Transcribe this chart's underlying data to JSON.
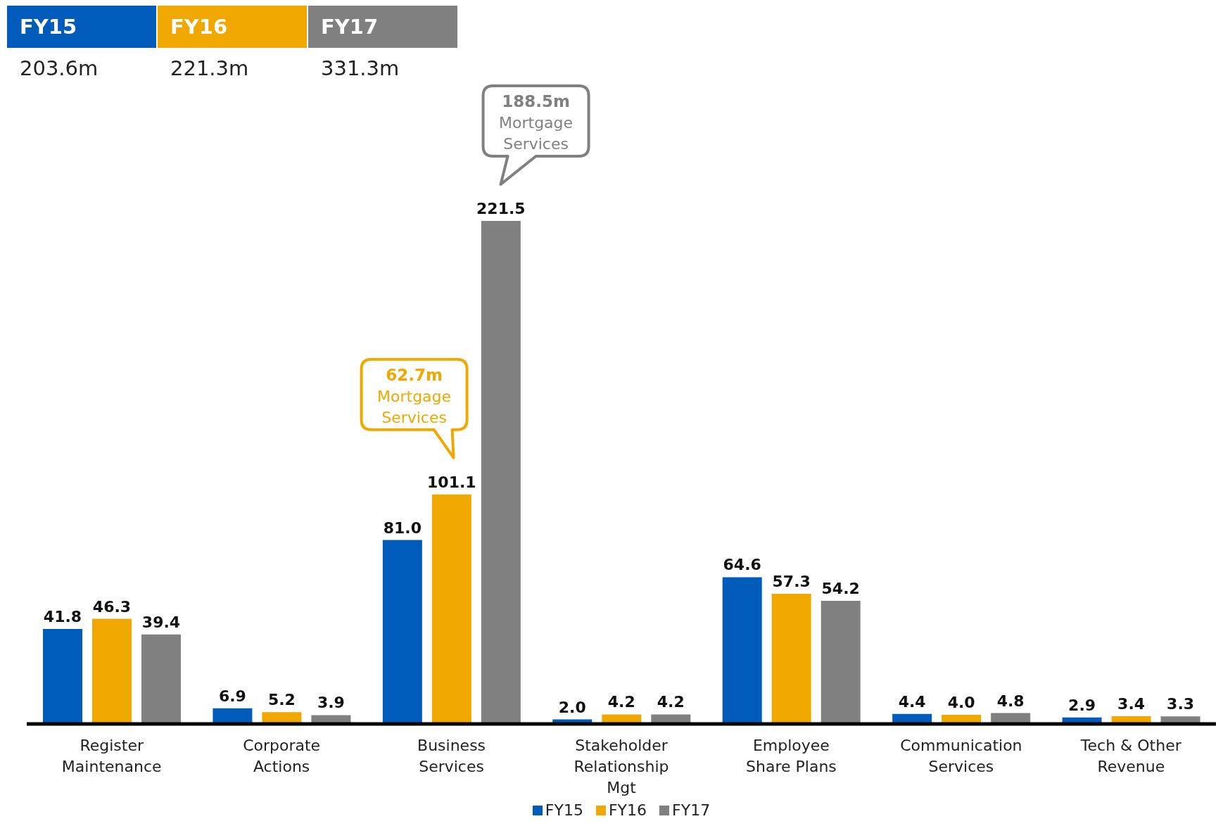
{
  "chart_data": {
    "type": "bar",
    "categories": [
      "Register Maintenance",
      "Corporate Actions",
      "Business Services",
      "Stakeholder Relationship Mgt",
      "Employee Share Plans",
      "Communication Services",
      "Tech & Other Revenue"
    ],
    "series": [
      {
        "name": "FY15",
        "color": "#005bbb",
        "values": [
          41.8,
          6.9,
          81.0,
          2.0,
          64.6,
          4.4,
          2.9
        ],
        "value_labels": [
          "41.8",
          "6.9",
          "81.0",
          "2.0",
          "64.6",
          "4.4",
          "2.9"
        ]
      },
      {
        "name": "FY16",
        "color": "#f0a800",
        "values": [
          46.3,
          5.2,
          101.1,
          4.2,
          57.3,
          4.0,
          3.4
        ],
        "value_labels": [
          "46.3",
          "5.2",
          "101.1",
          "4.2",
          "57.3",
          "4.0",
          "3.4"
        ]
      },
      {
        "name": "FY17",
        "color": "#808080",
        "values": [
          39.4,
          3.9,
          221.5,
          4.2,
          54.2,
          4.8,
          3.3
        ],
        "value_labels": [
          "39.4",
          "3.9",
          "221.5",
          "4.2",
          "54.2",
          "4.8",
          "3.3"
        ]
      }
    ],
    "legend": "bottom",
    "annotations": [
      "203.6m",
      "221.3m",
      "331.3m",
      "62.7m Mortgage Services",
      "188.5m Mortgage Services"
    ]
  }
}
